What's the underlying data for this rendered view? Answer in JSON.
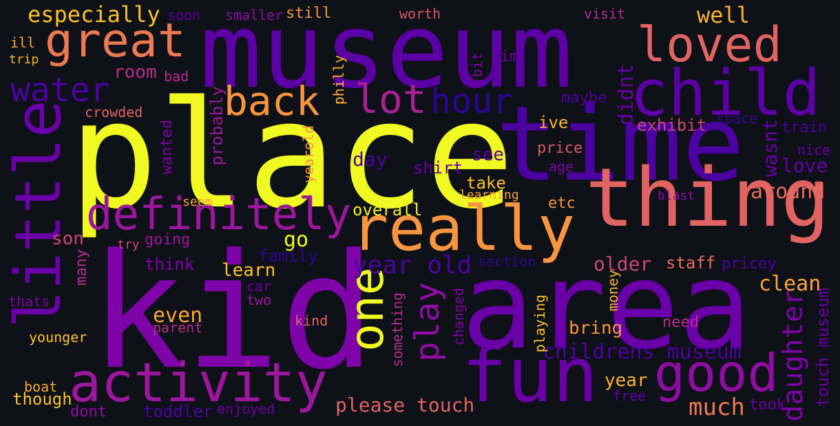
{
  "background": "#0e1117",
  "words": [
    {
      "text": "place",
      "color": "#f0f921"
    },
    {
      "text": "kid",
      "color": "#7e03a8"
    },
    {
      "text": "museum",
      "color": "#5c01a6"
    },
    {
      "text": "area",
      "color": "#6a00a8"
    },
    {
      "text": "time",
      "color": "#4c02a1"
    },
    {
      "text": "thing",
      "color": "#e16462"
    },
    {
      "text": "really",
      "color": "#f89540"
    },
    {
      "text": "child",
      "color": "#5c01a6"
    },
    {
      "text": "great",
      "color": "#ed7953"
    },
    {
      "text": "loved",
      "color": "#e16462"
    },
    {
      "text": "little",
      "color": "#6a00a8"
    },
    {
      "text": "definitely",
      "color": "#9c179e"
    },
    {
      "text": "fun",
      "color": "#6a00a8"
    },
    {
      "text": "good",
      "color": "#8f0da4"
    },
    {
      "text": "activity",
      "color": "#9c179e"
    },
    {
      "text": "one",
      "color": "#f0f921"
    },
    {
      "text": "back",
      "color": "#f89540"
    },
    {
      "text": "lot",
      "color": "#a82296"
    },
    {
      "text": "hour",
      "color": "#2c0594"
    },
    {
      "text": "water",
      "color": "#4c02a1"
    },
    {
      "text": "play",
      "color": "#8f0da4"
    },
    {
      "text": "year old",
      "color": "#4c02a1"
    },
    {
      "text": "childrens museum",
      "color": "#4c02a1"
    },
    {
      "text": "daughter",
      "color": "#7e03a8"
    },
    {
      "text": "touch museum",
      "color": "#6a00a8"
    },
    {
      "text": "especially",
      "color": "#fdc328"
    },
    {
      "text": "well",
      "color": "#fdb42f"
    },
    {
      "text": "room",
      "color": "#b52f8c"
    },
    {
      "text": "day",
      "color": "#4c02a1"
    },
    {
      "text": "shirt",
      "color": "#6a00a8"
    },
    {
      "text": "see",
      "color": "#5c01a6"
    },
    {
      "text": "didnt",
      "color": "#6a00a8"
    },
    {
      "text": "exhibit",
      "color": "#cc4778"
    },
    {
      "text": "ive",
      "color": "#fdb42f"
    },
    {
      "text": "maybe",
      "color": "#4c02a1"
    },
    {
      "text": "wasnt",
      "color": "#6a00a8"
    },
    {
      "text": "love",
      "color": "#6a00a8"
    },
    {
      "text": "price",
      "color": "#d8576b"
    },
    {
      "text": "age",
      "color": "#7e03a8"
    },
    {
      "text": "train",
      "color": "#4c02a1"
    },
    {
      "text": "space",
      "color": "#350498"
    },
    {
      "text": "nice",
      "color": "#6a00a8"
    },
    {
      "text": "around",
      "color": "#e66c5c"
    },
    {
      "text": "blast",
      "color": "#8f0da4"
    },
    {
      "text": "take",
      "color": "#fdc328"
    },
    {
      "text": "learning",
      "color": "#fca636"
    },
    {
      "text": "overall",
      "color": "#f3ee27"
    },
    {
      "text": "etc",
      "color": "#f89540"
    },
    {
      "text": "go",
      "color": "#f0f921"
    },
    {
      "text": "son",
      "color": "#cc4778"
    },
    {
      "text": "older",
      "color": "#cc4778"
    },
    {
      "text": "staff",
      "color": "#e56b5d"
    },
    {
      "text": "pricey",
      "color": "#4c02a1"
    },
    {
      "text": "clean",
      "color": "#fca636"
    },
    {
      "text": "learn",
      "color": "#fdc328"
    },
    {
      "text": "family",
      "color": "#2c0594"
    },
    {
      "text": "section",
      "color": "#2c0594"
    },
    {
      "text": "think",
      "color": "#7e03a8"
    },
    {
      "text": "many",
      "color": "#b52f8c"
    },
    {
      "text": "car",
      "color": "#6a00a8"
    },
    {
      "text": "two",
      "color": "#9c179e"
    },
    {
      "text": "even",
      "color": "#fca636"
    },
    {
      "text": "bring",
      "color": "#f89540"
    },
    {
      "text": "need",
      "color": "#b52f8c"
    },
    {
      "text": "kind",
      "color": "#e16462"
    },
    {
      "text": "parent",
      "color": "#b52f8c"
    },
    {
      "text": "thats",
      "color": "#7e03a8"
    },
    {
      "text": "younger",
      "color": "#fdc328"
    },
    {
      "text": "boat",
      "color": "#fca636"
    },
    {
      "text": "though",
      "color": "#fdc328"
    },
    {
      "text": "dont",
      "color": "#8f0da4"
    },
    {
      "text": "toddler",
      "color": "#4c02a1"
    },
    {
      "text": "enjoyed",
      "color": "#6a00a8"
    },
    {
      "text": "please touch",
      "color": "#e16462"
    },
    {
      "text": "much",
      "color": "#ed7953"
    },
    {
      "text": "year",
      "color": "#fdb42f"
    },
    {
      "text": "free",
      "color": "#5c01a6"
    },
    {
      "text": "took",
      "color": "#6a00a8"
    },
    {
      "text": "crowded",
      "color": "#e16462"
    },
    {
      "text": "bad",
      "color": "#b52f8c"
    },
    {
      "text": "ill",
      "color": "#fca636"
    },
    {
      "text": "trip",
      "color": "#fdb42f"
    },
    {
      "text": "soon",
      "color": "#5c01a6"
    },
    {
      "text": "smaller",
      "color": "#8f0da4"
    },
    {
      "text": "still",
      "color": "#f89540"
    },
    {
      "text": "worth",
      "color": "#d8576b"
    },
    {
      "text": "visit",
      "color": "#b52f8c"
    },
    {
      "text": "im",
      "color": "#6a00a8"
    },
    {
      "text": "bit",
      "color": "#7e03a8"
    },
    {
      "text": "philly",
      "color": "#fdb42f"
    },
    {
      "text": "probably",
      "color": "#9c179e"
    },
    {
      "text": "wanted",
      "color": "#7e03a8"
    },
    {
      "text": "yearold",
      "color": "#f89540"
    },
    {
      "text": "seem",
      "color": "#fca636"
    },
    {
      "text": "try",
      "color": "#cc4778"
    },
    {
      "text": "going",
      "color": "#9c179e"
    },
    {
      "text": "something",
      "color": "#b52f8c"
    },
    {
      "text": "changed",
      "color": "#7e03a8"
    },
    {
      "text": "playing",
      "color": "#fdc328"
    },
    {
      "text": "money",
      "color": "#fdb42f"
    }
  ]
}
